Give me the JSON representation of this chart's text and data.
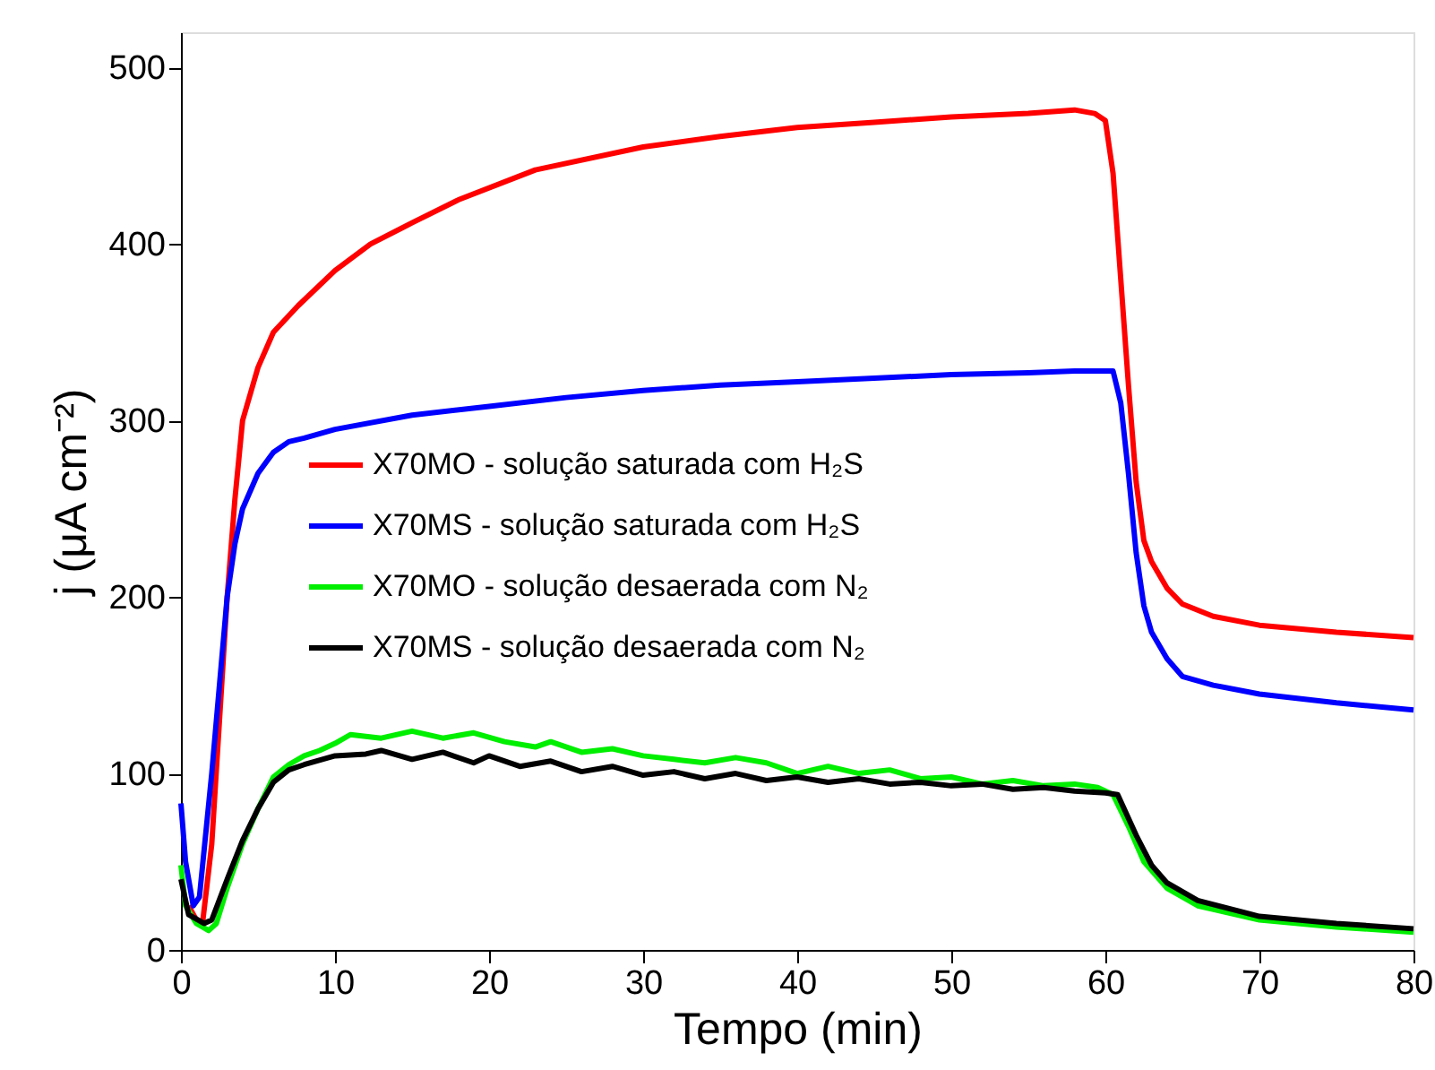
{
  "chart_data": {
    "type": "line",
    "xlabel": "Tempo (min)",
    "ylabel": "j (μA cm⁻²)",
    "xlim": [
      0,
      80
    ],
    "xticks": [
      0,
      10,
      20,
      30,
      40,
      50,
      60,
      70,
      80
    ],
    "ylim": [
      0,
      520
    ],
    "yticks": [
      0,
      100,
      200,
      300,
      400,
      500
    ],
    "grid": false,
    "legend": "left",
    "line_style": "solid",
    "marker": "none",
    "series": [
      {
        "name": "X70MO - solução saturada com H₂S",
        "color": "#ff0000",
        "x": [
          0.5,
          1,
          1.4,
          2,
          2.5,
          3,
          3.5,
          4,
          5,
          6,
          7.6,
          10,
          12.3,
          15,
          18,
          23,
          30,
          35,
          40,
          45,
          50,
          55,
          58,
          59.3,
          60,
          60.5,
          61,
          61.5,
          62,
          62.5,
          63,
          64,
          65,
          67,
          70,
          75,
          80
        ],
        "values": [
          25,
          17,
          15,
          60,
          130,
          200,
          255,
          300,
          330,
          350,
          365,
          385,
          400,
          412,
          425,
          442,
          455,
          461,
          466,
          469,
          472,
          474,
          476,
          474,
          470,
          440,
          380,
          320,
          265,
          232,
          220,
          205,
          196,
          189,
          184,
          180,
          177
        ]
      },
      {
        "name": "X70MS - solução saturada com H₂S",
        "color": "#0000ff",
        "x": [
          0,
          0.3,
          0.8,
          1.2,
          2,
          2.5,
          3,
          3.5,
          4,
          5,
          6,
          7,
          8,
          10,
          15,
          20,
          25,
          30,
          35,
          40,
          45,
          50,
          55,
          58,
          60.5,
          61,
          61.5,
          62,
          62.5,
          63,
          64,
          65,
          67,
          70,
          75,
          80
        ],
        "values": [
          83,
          50,
          25,
          30,
          100,
          150,
          200,
          230,
          250,
          270,
          282,
          288,
          290,
          295,
          303,
          308,
          313,
          317,
          320,
          322,
          324,
          326,
          327,
          328,
          328,
          310,
          270,
          225,
          195,
          180,
          165,
          155,
          150,
          145,
          140,
          136
        ]
      },
      {
        "name": "X70MO - solução desaerada com N₂",
        "color": "#00ee00",
        "x": [
          0,
          0.3,
          1,
          1.8,
          2.3,
          3,
          4,
          5,
          6,
          7,
          8,
          9,
          10,
          11,
          13,
          15,
          17,
          19,
          21,
          23,
          24,
          26,
          28,
          30,
          32,
          34,
          36,
          38,
          40,
          42,
          44,
          46,
          48,
          50,
          52,
          54,
          56,
          58,
          59.5,
          60.5,
          61.5,
          62.5,
          64,
          66,
          70,
          75,
          80
        ],
        "values": [
          48,
          25,
          15,
          11,
          15,
          35,
          60,
          80,
          98,
          105,
          110,
          113,
          117,
          122,
          120,
          124,
          120,
          123,
          118,
          115,
          118,
          112,
          114,
          110,
          108,
          106,
          109,
          106,
          100,
          104,
          100,
          102,
          97,
          98,
          94,
          96,
          93,
          94,
          92,
          88,
          70,
          50,
          35,
          25,
          17,
          13,
          10
        ]
      },
      {
        "name": "X70MS - solução desaerada com N₂",
        "color": "#000000",
        "x": [
          0,
          0.5,
          1.5,
          2,
          3,
          4,
          5,
          6,
          7,
          8,
          10,
          12,
          13,
          15,
          17,
          19,
          20,
          22,
          24,
          26,
          28,
          30,
          32,
          34,
          36,
          38,
          40,
          42,
          44,
          46,
          48,
          50,
          52,
          54,
          56,
          58,
          60,
          60.8,
          62,
          63,
          64,
          66,
          70,
          75,
          80
        ],
        "values": [
          40,
          20,
          15,
          17,
          40,
          62,
          80,
          95,
          102,
          105,
          110,
          111,
          113,
          108,
          112,
          106,
          110,
          104,
          107,
          101,
          104,
          99,
          101,
          97,
          100,
          96,
          98,
          95,
          97,
          94,
          95,
          93,
          94,
          91,
          92,
          90,
          89,
          88,
          65,
          48,
          38,
          28,
          19,
          15,
          12
        ]
      }
    ]
  }
}
